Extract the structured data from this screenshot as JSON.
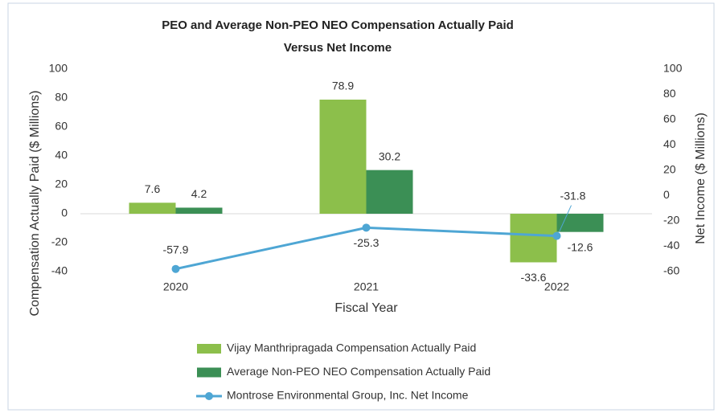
{
  "chart_data": {
    "type": "bar",
    "title": "PEO and Average Non-PEO NEO Compensation Actually Paid Versus Net Income",
    "xlabel": "Fiscal Year",
    "ylabel": "Compensation Actually Paid ($ Millions)",
    "y2label": "Net Income ($ Millions)",
    "categories": [
      "2020",
      "2021",
      "2022"
    ],
    "series": [
      {
        "name": "Vijay Manthripragada Compensation Actually Paid",
        "type": "bar",
        "color": "#8cbf4b",
        "values": [
          7.6,
          78.9,
          -33.6
        ]
      },
      {
        "name": "Average Non-PEO NEO Compensation Actually Paid",
        "type": "bar",
        "color": "#3b8f55",
        "values": [
          4.2,
          30.2,
          -12.6
        ]
      },
      {
        "name": "Montrose Environmental Group, Inc. Net Income",
        "type": "line",
        "axis": "y2",
        "color": "#4ea6d4",
        "values": [
          -57.9,
          -25.3,
          -31.8
        ]
      }
    ],
    "ylim": [
      -40,
      100
    ],
    "yticks": [
      -40,
      -20,
      0,
      20,
      40,
      60,
      80,
      100
    ],
    "y2lim": [
      -60,
      100
    ],
    "y2ticks": [
      -60,
      -40,
      -20,
      0,
      20,
      40,
      60,
      80,
      100
    ],
    "legend": "bottom"
  }
}
